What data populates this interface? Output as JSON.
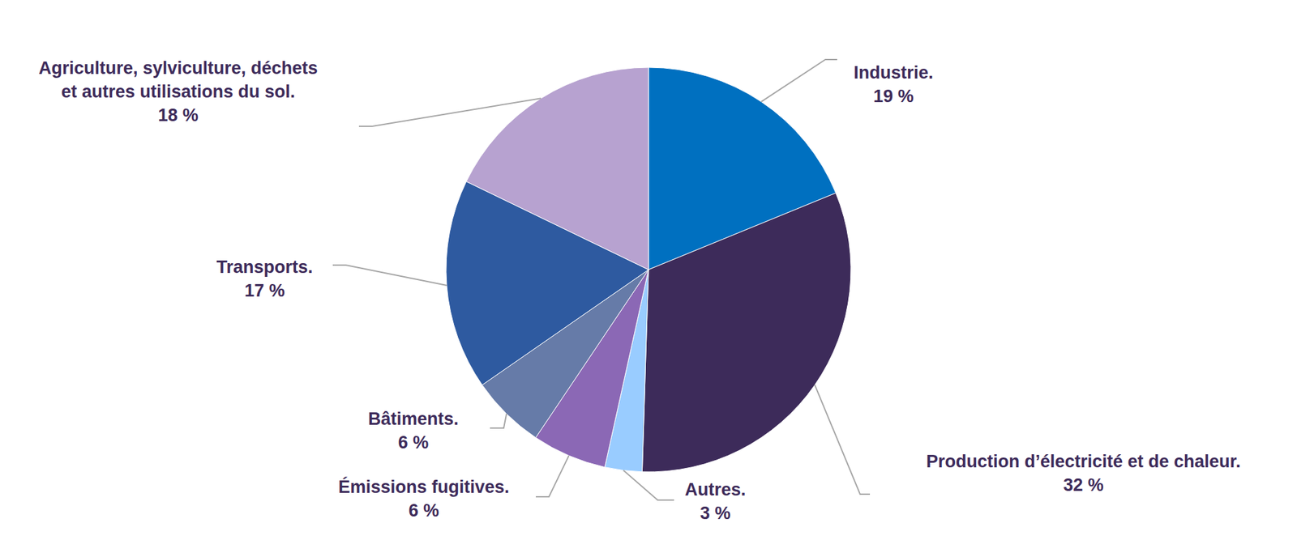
{
  "chart_data": {
    "type": "pie",
    "categories": [
      "Industrie.",
      "Production d’électricité et de chaleur.",
      "Autres.",
      "Émissions fugitives.",
      "Bâtiments.",
      "Transports.",
      "Agriculture, sylviculture, déchets et autres utilisations du sol."
    ],
    "values": [
      19,
      32,
      3,
      6,
      6,
      17,
      18
    ],
    "value_labels": [
      "19 %",
      "32 %",
      "3 %",
      "6 %",
      "6 %",
      "17 %",
      "18 %"
    ],
    "colors": [
      "#0070c0",
      "#3d2b5a",
      "#99ccff",
      "#8b68b5",
      "#667ba8",
      "#2e5aa0",
      "#b7a2d0"
    ],
    "data_labels": true
  }
}
